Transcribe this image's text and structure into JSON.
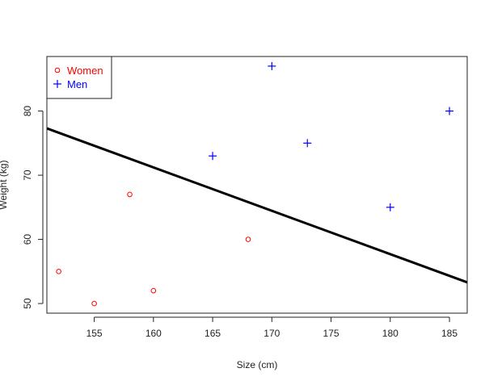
{
  "chart_data": {
    "type": "scatter",
    "title": "",
    "xlabel": "Size (cm)",
    "ylabel": "Weight (kg)",
    "xlim": [
      151,
      186.5
    ],
    "ylim": [
      48.5,
      88.5
    ],
    "x_ticks": [
      155,
      160,
      165,
      170,
      175,
      180,
      185
    ],
    "y_ticks": [
      50,
      60,
      70,
      80
    ],
    "grid": false,
    "legend_position": "top-left",
    "series": [
      {
        "name": "Women",
        "marker": "circle",
        "color": "#ff0000",
        "points": [
          {
            "x": 152,
            "y": 55
          },
          {
            "x": 155,
            "y": 50
          },
          {
            "x": 158,
            "y": 67
          },
          {
            "x": 160,
            "y": 52
          },
          {
            "x": 168,
            "y": 60
          }
        ]
      },
      {
        "name": "Men",
        "marker": "plus",
        "color": "#0000ff",
        "points": [
          {
            "x": 165,
            "y": 73
          },
          {
            "x": 170,
            "y": 87
          },
          {
            "x": 173,
            "y": 75
          },
          {
            "x": 180,
            "y": 65
          },
          {
            "x": 185,
            "y": 80
          }
        ]
      }
    ],
    "regression_line": {
      "color": "#000000",
      "from": {
        "x": 151,
        "y": 77.3
      },
      "to": {
        "x": 186.5,
        "y": 53.3
      }
    }
  }
}
